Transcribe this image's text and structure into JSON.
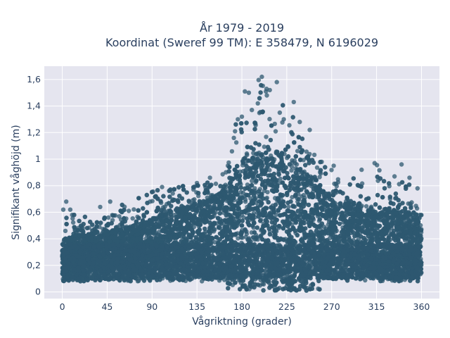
{
  "chart_data": {
    "type": "scatter",
    "title": "År 1979 - 2019",
    "subtitle": "Koordinat (Sweref 99 TM): E 358479, N 6196029",
    "xlabel": "Vågriktning (grader)",
    "ylabel": "Signifikant våghöjd (m)",
    "xlim": [
      -18,
      378
    ],
    "ylim": [
      -0.05,
      1.7
    ],
    "xticks": [
      0,
      45,
      90,
      135,
      180,
      225,
      270,
      315,
      360
    ],
    "xtick_labels": [
      "0",
      "45",
      "90",
      "135",
      "180",
      "225",
      "270",
      "315",
      "360"
    ],
    "yticks": [
      0,
      0.2,
      0.4,
      0.6,
      0.8,
      1,
      1.2,
      1.4,
      1.6
    ],
    "ytick_labels": [
      "0",
      "0,2",
      "0,4",
      "0,6",
      "0,8",
      "1",
      "1,2",
      "1,4",
      "1,6"
    ],
    "grid": true,
    "marker_color": "#2e5870",
    "envelope": {
      "direction": [
        0,
        15,
        30,
        45,
        60,
        75,
        90,
        105,
        120,
        135,
        150,
        165,
        175,
        185,
        195,
        205,
        215,
        225,
        235,
        245,
        255,
        270,
        285,
        300,
        315,
        330,
        345,
        360
      ],
      "dense_upper": [
        0.38,
        0.42,
        0.44,
        0.45,
        0.47,
        0.5,
        0.55,
        0.6,
        0.63,
        0.66,
        0.7,
        0.78,
        0.9,
        0.98,
        1.02,
        1.05,
        1.05,
        1.0,
        0.95,
        0.88,
        0.8,
        0.7,
        0.66,
        0.62,
        0.6,
        0.6,
        0.6,
        0.52
      ],
      "max": [
        0.65,
        0.62,
        0.58,
        0.6,
        0.68,
        0.72,
        0.78,
        0.78,
        0.8,
        0.85,
        0.86,
        0.95,
        1.3,
        1.52,
        1.62,
        1.58,
        1.45,
        1.42,
        1.3,
        1.2,
        1.0,
        0.95,
        0.9,
        0.9,
        0.98,
        0.9,
        0.88,
        0.6
      ]
    },
    "outliers": [
      {
        "x": 1,
        "y": 0.62
      },
      {
        "x": 4,
        "y": 0.68
      },
      {
        "x": 8,
        "y": 0.62
      },
      {
        "x": 10,
        "y": 0.58
      },
      {
        "x": 38,
        "y": 0.64
      },
      {
        "x": 48,
        "y": 0.68
      },
      {
        "x": 88,
        "y": 0.68
      },
      {
        "x": 100,
        "y": 0.79
      },
      {
        "x": 135,
        "y": 0.82
      },
      {
        "x": 148,
        "y": 0.86
      },
      {
        "x": 166,
        "y": 0.95
      },
      {
        "x": 172,
        "y": 1.16
      },
      {
        "x": 176,
        "y": 1.3
      },
      {
        "x": 180,
        "y": 1.32
      },
      {
        "x": 183,
        "y": 1.51
      },
      {
        "x": 187,
        "y": 1.5
      },
      {
        "x": 190,
        "y": 1.37
      },
      {
        "x": 196,
        "y": 1.42
      },
      {
        "x": 200,
        "y": 1.62
      },
      {
        "x": 205,
        "y": 1.48
      },
      {
        "x": 208,
        "y": 1.52
      },
      {
        "x": 215,
        "y": 1.58
      },
      {
        "x": 218,
        "y": 1.35
      },
      {
        "x": 222,
        "y": 1.3
      },
      {
        "x": 232,
        "y": 1.43
      },
      {
        "x": 238,
        "y": 1.28
      },
      {
        "x": 248,
        "y": 1.22
      },
      {
        "x": 260,
        "y": 0.98
      },
      {
        "x": 272,
        "y": 0.95
      },
      {
        "x": 300,
        "y": 0.92
      },
      {
        "x": 313,
        "y": 0.97
      },
      {
        "x": 333,
        "y": 0.87
      },
      {
        "x": 340,
        "y": 0.96
      },
      {
        "x": 348,
        "y": 0.86
      },
      {
        "x": 356,
        "y": 0.78
      }
    ]
  }
}
